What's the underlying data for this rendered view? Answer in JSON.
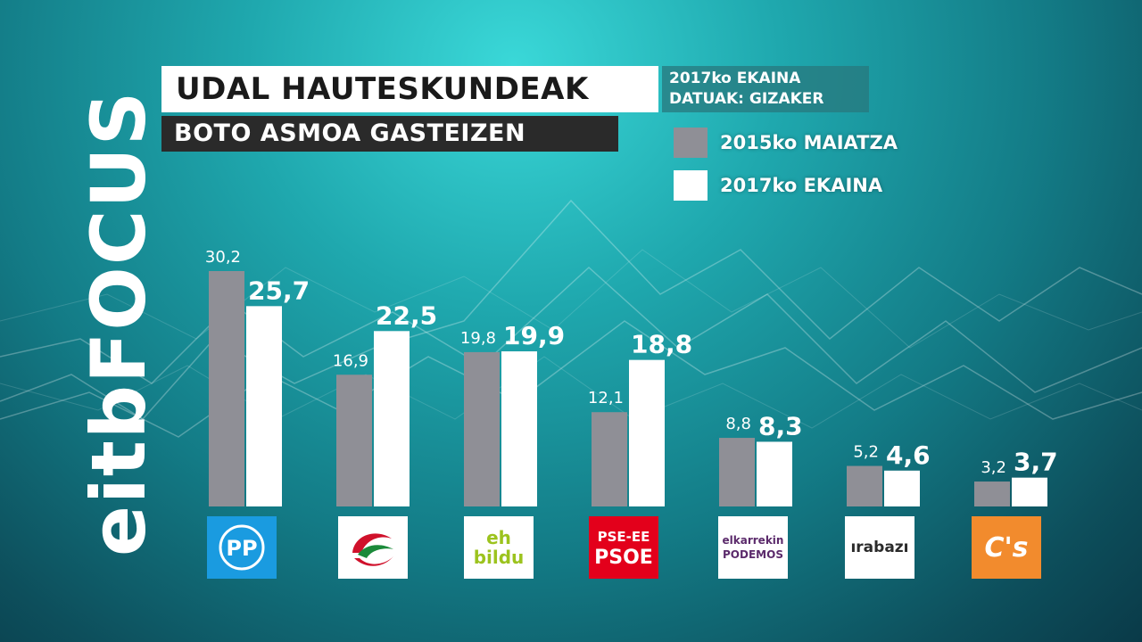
{
  "brand": {
    "channel": "eitbFOCUS"
  },
  "header": {
    "title": "UDAL HAUTESKUNDEAK",
    "subtitle": "BOTO ASMOA GASTEIZEN",
    "date": "2017ko EKAINA",
    "source": "DATUAK: GIZAKER"
  },
  "colors": {
    "series_2015": "#8f8f96",
    "series_2017": "#ffffff",
    "label": "#ffffff"
  },
  "chart_data": {
    "type": "bar",
    "title": "BOTO ASMOA GASTEIZEN",
    "categories": [
      "PP",
      "EAJ-PNV",
      "EH Bildu",
      "PSE-EE PSOE",
      "Elkarrekin Podemos",
      "Irabazi",
      "C's"
    ],
    "series": [
      {
        "name": "2015ko MAIATZA",
        "color": "#8f8f96",
        "values": [
          30.2,
          16.9,
          19.8,
          12.1,
          8.8,
          5.2,
          3.2
        ],
        "labels": [
          "30,2",
          "16,9",
          "19,8",
          "12,1",
          "8,8",
          "5,2",
          "3,2"
        ]
      },
      {
        "name": "2017ko EKAINA",
        "color": "#ffffff",
        "values": [
          25.7,
          22.5,
          19.9,
          18.8,
          8.3,
          4.6,
          3.7
        ],
        "labels": [
          "25,7",
          "22,5",
          "19,9",
          "18,8",
          "8,3",
          "4,6",
          "3,7"
        ]
      }
    ],
    "ylim": [
      0,
      30.2
    ],
    "legend": "top-right",
    "grid": false
  },
  "logos": [
    {
      "id": "pp",
      "text": "PP",
      "bg": "#1a9be0",
      "fg": "#ffffff",
      "icon": "pp-logo-icon"
    },
    {
      "id": "pnv",
      "text": "",
      "bg": "#ffffff",
      "fg": "#d0112b",
      "icon": "eaj-pnv-logo-icon"
    },
    {
      "id": "bildu",
      "line1": "eh",
      "line2": "bildu",
      "bg": "#ffffff",
      "fg": "#9cc31e",
      "icon": "eh-bildu-logo-icon"
    },
    {
      "id": "psoe",
      "line1": "PSE-EE",
      "line2": "PSOE",
      "bg": "#e3001b",
      "fg": "#ffffff",
      "icon": "pse-psoe-logo-icon"
    },
    {
      "id": "podemos",
      "line1": "elkarrekin",
      "line2": "PODEMOS",
      "bg": "#ffffff",
      "fg": "#5b2a6b",
      "icon": "podemos-logo-icon"
    },
    {
      "id": "irabazi",
      "line1": "ırabazı",
      "line2": "",
      "bg": "#ffffff",
      "fg": "#2b2b2b",
      "icon": "irabazi-logo-icon"
    },
    {
      "id": "cs",
      "text": "C's",
      "bg": "#f28b2d",
      "fg": "#ffffff",
      "icon": "ciudadanos-logo-icon"
    }
  ]
}
